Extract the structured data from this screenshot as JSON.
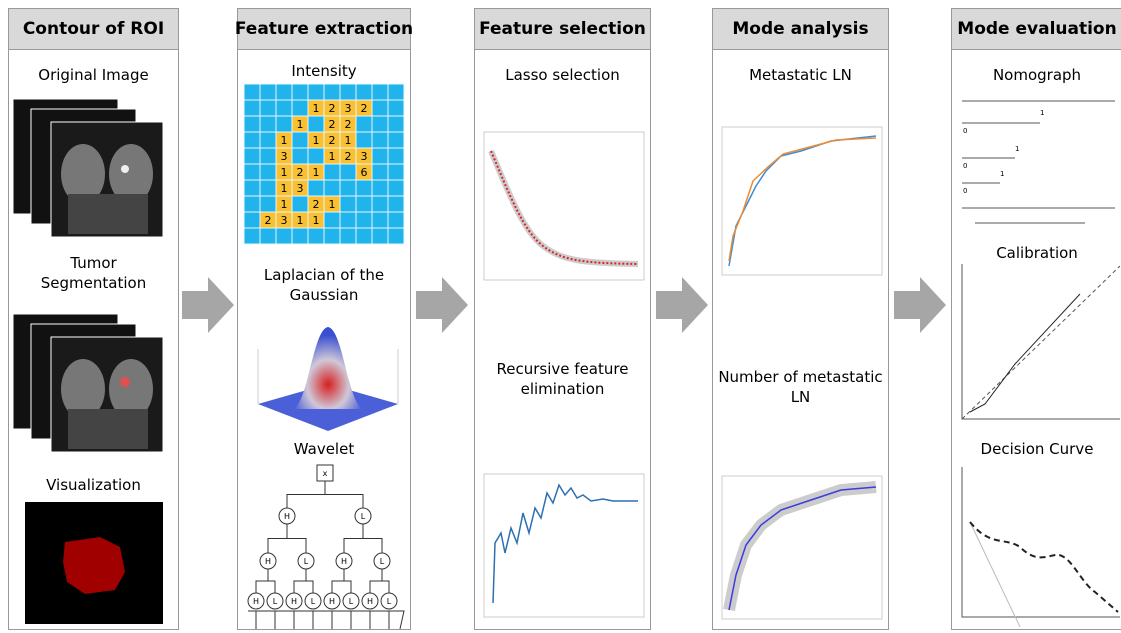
{
  "panels": [
    {
      "title": "Contour of ROI",
      "labels": [
        "Original Image",
        "Tumor Segmentation",
        "Visualization"
      ]
    },
    {
      "title": "Feature extraction",
      "labels": [
        "Intensity",
        "Laplacian of the Gaussian",
        "Wavelet"
      ]
    },
    {
      "title": "Feature selection",
      "labels": [
        "Lasso selection",
        "Recursive feature elimination"
      ]
    },
    {
      "title": "Mode analysis",
      "labels": [
        "Metastatic LN",
        "Number of metastatic LN"
      ]
    },
    {
      "title": "Mode evaluation",
      "labels": [
        "Nomograph",
        "Calibration",
        "Decision Curve"
      ]
    }
  ],
  "intensity_grid": [
    [
      null,
      null,
      null,
      null,
      null,
      null,
      null,
      null,
      null,
      null
    ],
    [
      null,
      null,
      null,
      null,
      "1",
      "2",
      "3",
      "2",
      null,
      null
    ],
    [
      null,
      null,
      null,
      "1",
      null,
      "2",
      "2",
      null,
      null,
      null
    ],
    [
      null,
      null,
      "1",
      null,
      "1",
      "2",
      "1",
      null,
      null,
      null
    ],
    [
      null,
      null,
      "3",
      null,
      null,
      "1",
      "2",
      "3",
      null,
      null
    ],
    [
      null,
      null,
      "1",
      "2",
      "1",
      null,
      null,
      "6",
      null,
      null
    ],
    [
      null,
      null,
      "1",
      "3",
      null,
      null,
      null,
      null,
      null,
      null
    ],
    [
      null,
      null,
      "1",
      null,
      "2",
      "1",
      null,
      null,
      null,
      null
    ],
    [
      null,
      "2",
      "3",
      "1",
      "1",
      null,
      null,
      null,
      null,
      null
    ],
    [
      null,
      null,
      null,
      null,
      null,
      null,
      null,
      null,
      null,
      null
    ]
  ],
  "wavelet_nodes": [
    "x",
    "H",
    "L",
    "H",
    "L",
    "H",
    "L",
    "H",
    "L",
    "H",
    "L",
    "H",
    "L",
    "H",
    "L"
  ],
  "nomograph_labels": [
    "1",
    "0",
    "1",
    "0",
    "1",
    "0"
  ]
}
